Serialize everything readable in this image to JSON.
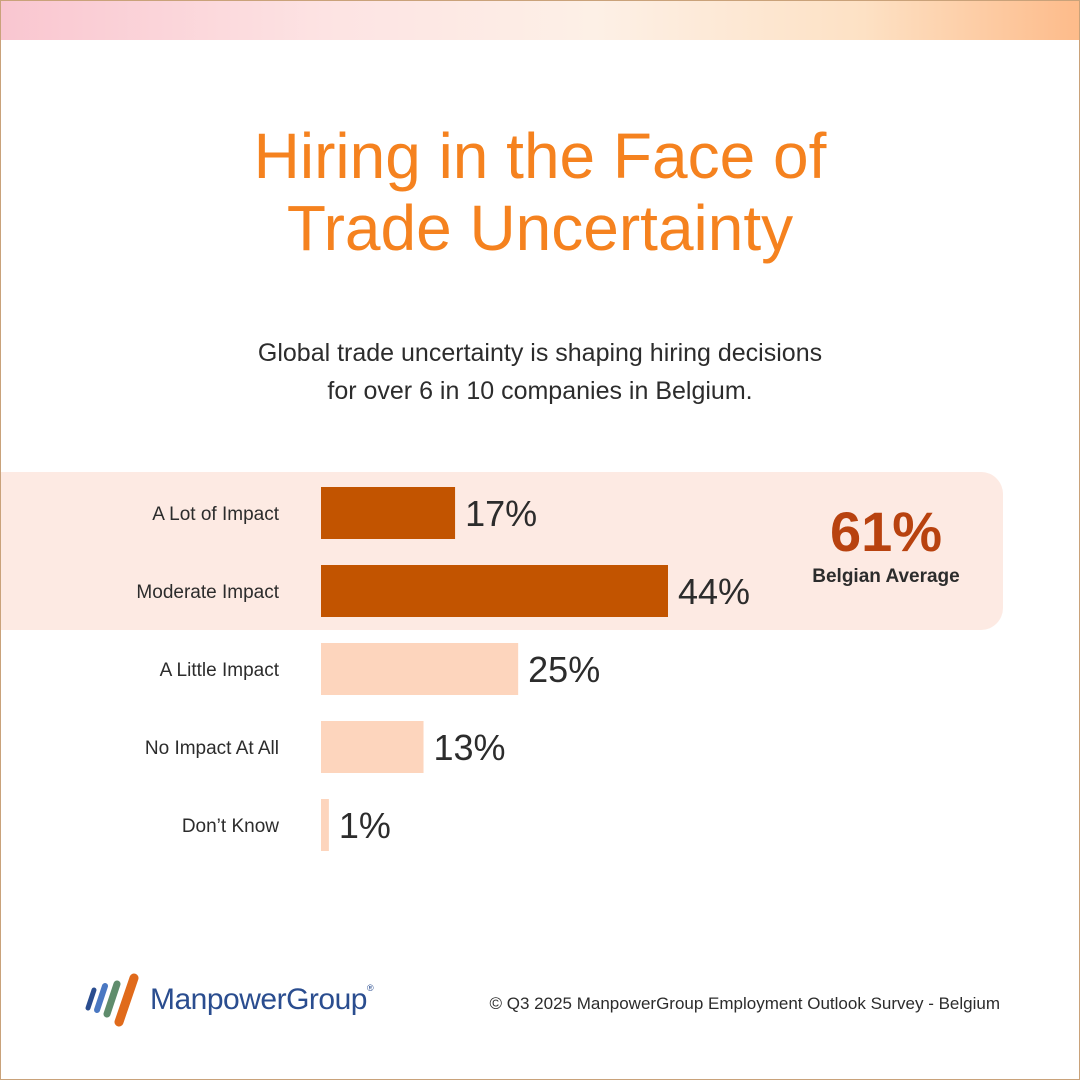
{
  "header": {
    "title_line1": "Hiring in the Face of",
    "title_line2": "Trade Uncertainty",
    "subtitle_line1": "Global trade uncertainty is shaping hiring decisions",
    "subtitle_line2": "for over 6 in 10 companies in Belgium."
  },
  "highlight": {
    "value": "61%",
    "label": "Belgian Average"
  },
  "colors": {
    "accent_orange": "#f5821f",
    "bar_dark": "#c25400",
    "bar_light": "#fdd5bd",
    "highlight_bg": "#fdeae3",
    "highlight_value": "#b8420f"
  },
  "chart_data": {
    "type": "bar",
    "orientation": "horizontal",
    "categories": [
      "A Lot of Impact",
      "Moderate Impact",
      "A Little Impact",
      "No Impact At All",
      "Don’t Know"
    ],
    "values": [
      17,
      44,
      25,
      13,
      1
    ],
    "value_labels": [
      "17%",
      "44%",
      "25%",
      "13%",
      "1%"
    ],
    "highlighted": [
      true,
      true,
      false,
      false,
      false
    ],
    "xlim": [
      0,
      44
    ]
  },
  "footer": {
    "brand": "ManpowerGroup",
    "brand_mark": "®",
    "source": "© Q3 2025 ManpowerGroup Employment Outlook Survey - Belgium"
  }
}
